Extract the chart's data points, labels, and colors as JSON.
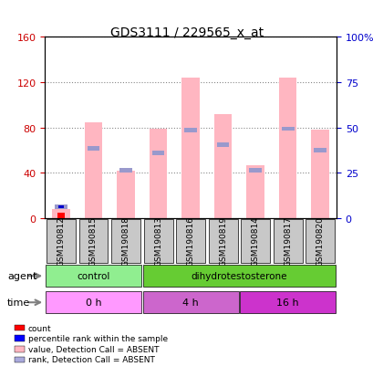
{
  "title": "GDS3111 / 229565_x_at",
  "samples": [
    "GSM190812",
    "GSM190815",
    "GSM190818",
    "GSM190813",
    "GSM190816",
    "GSM190819",
    "GSM190814",
    "GSM190817",
    "GSM190820"
  ],
  "pink_bar_values": [
    8,
    85,
    42,
    79,
    124,
    92,
    47,
    124,
    78
  ],
  "blue_marker_values": [
    10,
    62,
    42,
    58,
    78,
    65,
    42,
    79,
    60
  ],
  "red_bar_values": [
    5,
    0,
    0,
    0,
    0,
    0,
    0,
    0,
    0
  ],
  "blue_dot_values": [
    10,
    0,
    0,
    0,
    0,
    0,
    0,
    0,
    0
  ],
  "left_ylim": [
    0,
    160
  ],
  "left_yticks": [
    0,
    40,
    80,
    120,
    160
  ],
  "right_ylim": [
    0,
    100
  ],
  "right_yticks": [
    0,
    25,
    50,
    75,
    100
  ],
  "right_yticklabels": [
    "0",
    "25",
    "50",
    "75",
    "100%"
  ],
  "agent_labels": [
    {
      "text": "control",
      "start": 0,
      "end": 3,
      "color": "#90EE90"
    },
    {
      "text": "dihydrotestosterone",
      "start": 3,
      "end": 9,
      "color": "#66CC33"
    }
  ],
  "time_labels": [
    {
      "text": "0 h",
      "start": 0,
      "end": 3,
      "color": "#FF99FF"
    },
    {
      "text": "4 h",
      "start": 3,
      "end": 6,
      "color": "#CC66CC"
    },
    {
      "text": "16 h",
      "start": 6,
      "end": 9,
      "color": "#CC33CC"
    }
  ],
  "legend_items": [
    {
      "color": "#FF0000",
      "label": "count"
    },
    {
      "color": "#0000FF",
      "label": "percentile rank within the sample"
    },
    {
      "color": "#FFB6C1",
      "label": "value, Detection Call = ABSENT"
    },
    {
      "color": "#AAAADD",
      "label": "rank, Detection Call = ABSENT"
    }
  ],
  "pink_color": "#FFB6C1",
  "blue_color": "#9999CC",
  "red_color": "#FF0000",
  "dot_color": "#0000CD",
  "grid_color": "#888888",
  "bg_color": "#FFFFFF",
  "plot_bg": "#FFFFFF",
  "sample_bg": "#C8C8C8",
  "left_tick_color": "#CC0000",
  "right_tick_color": "#0000CC"
}
